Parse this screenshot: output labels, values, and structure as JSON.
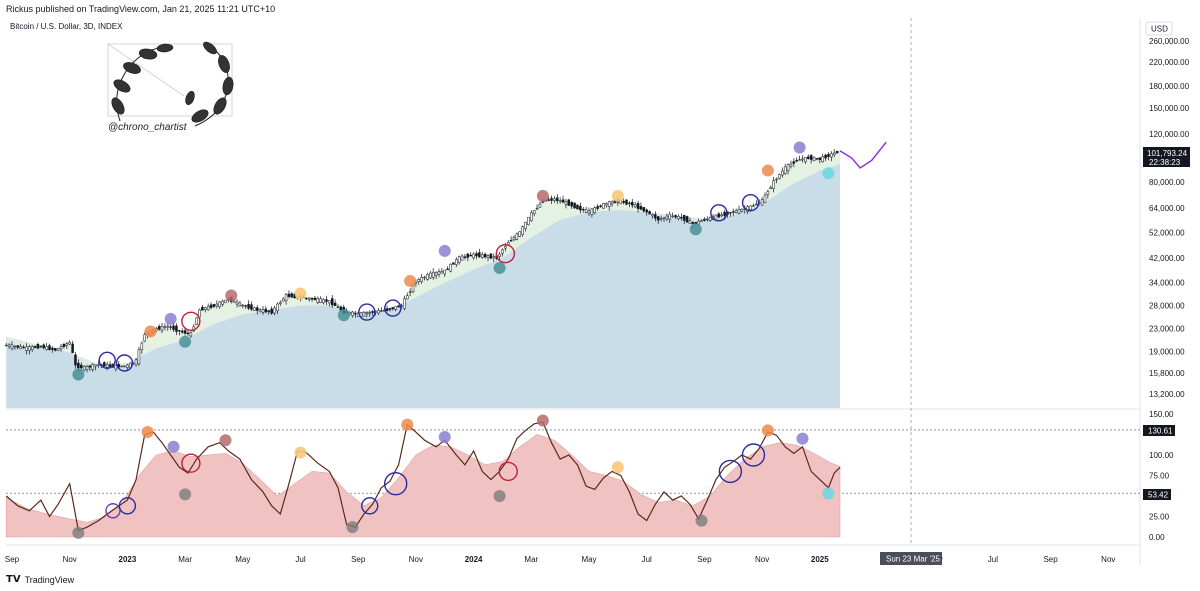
{
  "header": {
    "published_text": "Rickus published on TradingView.com, Jan 21, 2025 11:21 UTC+10"
  },
  "chart_title": "Bitcoin / U.S. Dollar, 3D, INDEX",
  "watermark_handle": "@chrono_chartist",
  "footer": {
    "brand": "TradingView"
  },
  "currency_label": "USD",
  "price_badge": {
    "price": "101,793.24",
    "countdown": "22:38:23"
  },
  "osc_badges": [
    "130.61",
    "53.42"
  ],
  "crosshair_date": "Sun 23 Mar '25",
  "colors": {
    "cloud_fill": "#c9dde8",
    "band_fill": "#dfeede",
    "osc_fill": "#f0c2c2",
    "osc_line": "#5a2a1a",
    "candle": "#131722",
    "projection": "#8a2be2",
    "marker_cyan": "#6fd6e0"
  },
  "chart_data": [
    {
      "type": "candlestick",
      "title": "Bitcoin / U.S. Dollar, 3D, INDEX",
      "y_scale": "log",
      "y_ticks": [
        13200,
        15800,
        19000,
        23000,
        28000,
        34000,
        42000,
        52000,
        64000,
        80000,
        120000,
        150000,
        180000,
        220000,
        260000
      ],
      "y_tick_labels": [
        "13,200.00",
        "15,800.00",
        "19,000.00",
        "23,000.00",
        "28,000.00",
        "34,000.00",
        "42,000.00",
        "52,000.00",
        "64,000.00",
        "80,000.00",
        "120,000.00",
        "150,000.00",
        "180,000.00",
        "220,000.00",
        "260,000.00"
      ],
      "x_ticks": [
        "Sep",
        "Nov",
        "2023",
        "Mar",
        "May",
        "Jul",
        "Sep",
        "Nov",
        "2024",
        "Mar",
        "May",
        "Jul",
        "Sep",
        "Nov",
        "2025",
        "May",
        "Jul",
        "Sep",
        "Nov"
      ],
      "x_tick_months": [
        0,
        2,
        4,
        6,
        8,
        10,
        12,
        14,
        16,
        18,
        20,
        22,
        24,
        26,
        28,
        32,
        34,
        36,
        38
      ],
      "price_path": [
        [
          -0.2,
          20000
        ],
        [
          0.5,
          19500
        ],
        [
          1.0,
          19800
        ],
        [
          1.5,
          19200
        ],
        [
          2.0,
          20500
        ],
        [
          2.2,
          16800
        ],
        [
          2.5,
          16500
        ],
        [
          3.0,
          17000
        ],
        [
          3.5,
          16700
        ],
        [
          4.0,
          16800
        ],
        [
          4.3,
          17500
        ],
        [
          4.6,
          22000
        ],
        [
          5.0,
          23000
        ],
        [
          5.4,
          23500
        ],
        [
          5.8,
          22500
        ],
        [
          6.2,
          22000
        ],
        [
          6.5,
          27000
        ],
        [
          7.0,
          28000
        ],
        [
          7.5,
          29500
        ],
        [
          8.0,
          28000
        ],
        [
          8.5,
          27000
        ],
        [
          9.0,
          26500
        ],
        [
          9.5,
          30500
        ],
        [
          10.0,
          30000
        ],
        [
          10.5,
          29500
        ],
        [
          11.0,
          29000
        ],
        [
          11.5,
          26500
        ],
        [
          12.0,
          26000
        ],
        [
          12.5,
          26500
        ],
        [
          13.0,
          27000
        ],
        [
          13.5,
          28000
        ],
        [
          14.0,
          34500
        ],
        [
          14.5,
          36500
        ],
        [
          15.0,
          37500
        ],
        [
          15.5,
          42000
        ],
        [
          16.0,
          43000
        ],
        [
          16.5,
          42500
        ],
        [
          16.8,
          42000
        ],
        [
          17.2,
          48000
        ],
        [
          17.6,
          52000
        ],
        [
          18.0,
          61000
        ],
        [
          18.4,
          68000
        ],
        [
          18.8,
          69000
        ],
        [
          19.2,
          67000
        ],
        [
          19.6,
          64000
        ],
        [
          20.0,
          62000
        ],
        [
          20.5,
          66000
        ],
        [
          21.0,
          68000
        ],
        [
          21.5,
          66000
        ],
        [
          22.0,
          62000
        ],
        [
          22.4,
          58000
        ],
        [
          22.8,
          60000
        ],
        [
          23.2,
          59000
        ],
        [
          23.6,
          56000
        ],
        [
          24.0,
          58000
        ],
        [
          24.5,
          60000
        ],
        [
          25.0,
          62000
        ],
        [
          25.5,
          64000
        ],
        [
          26.0,
          68000
        ],
        [
          26.4,
          80000
        ],
        [
          26.8,
          90000
        ],
        [
          27.2,
          96000
        ],
        [
          27.6,
          98000
        ],
        [
          28.0,
          97000
        ],
        [
          28.3,
          100000
        ],
        [
          28.7,
          104000
        ]
      ],
      "projection_path": [
        [
          28.7,
          104000
        ],
        [
          29.1,
          98000
        ],
        [
          29.4,
          90000
        ],
        [
          29.8,
          96000
        ],
        [
          30.3,
          112000
        ]
      ],
      "cloud_lower": [
        [
          -0.2,
          21500
        ],
        [
          1.0,
          20000
        ],
        [
          2.0,
          18800
        ],
        [
          3.0,
          17000
        ],
        [
          4.0,
          17200
        ],
        [
          5.0,
          19500
        ],
        [
          6.0,
          21000
        ],
        [
          7.0,
          24000
        ],
        [
          8.0,
          26000
        ],
        [
          9.0,
          27000
        ],
        [
          10.0,
          28000
        ],
        [
          11.0,
          28000
        ],
        [
          12.0,
          26500
        ],
        [
          13.0,
          27000
        ],
        [
          14.0,
          30000
        ],
        [
          15.0,
          34000
        ],
        [
          16.0,
          38000
        ],
        [
          17.0,
          42000
        ],
        [
          18.0,
          50000
        ],
        [
          19.0,
          58000
        ],
        [
          20.0,
          62000
        ],
        [
          21.0,
          63000
        ],
        [
          22.0,
          62000
        ],
        [
          23.0,
          60000
        ],
        [
          24.0,
          58500
        ],
        [
          25.0,
          60000
        ],
        [
          26.0,
          66000
        ],
        [
          27.0,
          78000
        ],
        [
          28.0,
          88000
        ],
        [
          28.7,
          93000
        ]
      ],
      "markers": [
        {
          "t": 2.3,
          "v": 15600,
          "style": "teal"
        },
        {
          "t": 3.3,
          "v": 17600,
          "style": "ring-blue"
        },
        {
          "t": 3.9,
          "v": 17200,
          "style": "ring-blue"
        },
        {
          "t": 4.8,
          "v": 22500,
          "style": "orange"
        },
        {
          "t": 5.5,
          "v": 25000,
          "style": "purple"
        },
        {
          "t": 6.0,
          "v": 20600,
          "style": "teal"
        },
        {
          "t": 6.2,
          "v": 24500,
          "style": "ring-red"
        },
        {
          "t": 7.6,
          "v": 30500,
          "style": "brown"
        },
        {
          "t": 10.0,
          "v": 31000,
          "style": "yellow"
        },
        {
          "t": 11.5,
          "v": 25800,
          "style": "teal"
        },
        {
          "t": 12.3,
          "v": 26500,
          "style": "ring-blue"
        },
        {
          "t": 13.2,
          "v": 27400,
          "style": "ring-blue"
        },
        {
          "t": 13.8,
          "v": 34500,
          "style": "orange"
        },
        {
          "t": 15.0,
          "v": 44500,
          "style": "purple"
        },
        {
          "t": 16.9,
          "v": 38500,
          "style": "teal"
        },
        {
          "t": 17.1,
          "v": 43500,
          "style": "ring-red"
        },
        {
          "t": 18.4,
          "v": 71000,
          "style": "brown"
        },
        {
          "t": 21.0,
          "v": 71000,
          "style": "yellow"
        },
        {
          "t": 23.7,
          "v": 53500,
          "style": "teal"
        },
        {
          "t": 24.5,
          "v": 61500,
          "style": "ring-blue"
        },
        {
          "t": 25.6,
          "v": 67000,
          "style": "ring-blue"
        },
        {
          "t": 26.2,
          "v": 88000,
          "style": "orange"
        },
        {
          "t": 27.3,
          "v": 107000,
          "style": "purple"
        },
        {
          "t": 28.3,
          "v": 86000,
          "style": "cyan"
        }
      ]
    },
    {
      "type": "oscillator",
      "y_ticks": [
        0,
        25,
        50,
        75,
        100,
        150
      ],
      "y_tick_labels": [
        "0.00",
        "25.00",
        "50.00",
        "75.00",
        "100.00",
        "150.00"
      ],
      "levels": [
        130.61,
        53.42
      ],
      "line": [
        [
          -0.2,
          50
        ],
        [
          0.2,
          38
        ],
        [
          0.6,
          32
        ],
        [
          1.0,
          45
        ],
        [
          1.3,
          25
        ],
        [
          1.6,
          40
        ],
        [
          2.0,
          65
        ],
        [
          2.3,
          8
        ],
        [
          2.6,
          12
        ],
        [
          3.0,
          20
        ],
        [
          3.3,
          28
        ],
        [
          3.7,
          38
        ],
        [
          4.0,
          45
        ],
        [
          4.3,
          70
        ],
        [
          4.6,
          125
        ],
        [
          4.9,
          128
        ],
        [
          5.2,
          115
        ],
        [
          5.5,
          100
        ],
        [
          5.8,
          85
        ],
        [
          6.1,
          78
        ],
        [
          6.4,
          95
        ],
        [
          6.8,
          110
        ],
        [
          7.2,
          115
        ],
        [
          7.5,
          105
        ],
        [
          7.9,
          95
        ],
        [
          8.3,
          70
        ],
        [
          8.7,
          55
        ],
        [
          9.0,
          38
        ],
        [
          9.3,
          28
        ],
        [
          9.6,
          65
        ],
        [
          9.9,
          105
        ],
        [
          10.2,
          103
        ],
        [
          10.6,
          90
        ],
        [
          11.0,
          80
        ],
        [
          11.3,
          60
        ],
        [
          11.6,
          15
        ],
        [
          11.9,
          12
        ],
        [
          12.2,
          28
        ],
        [
          12.5,
          40
        ],
        [
          12.8,
          60
        ],
        [
          13.1,
          68
        ],
        [
          13.4,
          88
        ],
        [
          13.7,
          137
        ],
        [
          14.0,
          128
        ],
        [
          14.3,
          118
        ],
        [
          14.7,
          110
        ],
        [
          15.0,
          118
        ],
        [
          15.4,
          100
        ],
        [
          15.7,
          88
        ],
        [
          16.0,
          105
        ],
        [
          16.3,
          80
        ],
        [
          16.6,
          70
        ],
        [
          16.9,
          80
        ],
        [
          17.2,
          95
        ],
        [
          17.5,
          120
        ],
        [
          17.8,
          130
        ],
        [
          18.1,
          138
        ],
        [
          18.4,
          140
        ],
        [
          18.7,
          115
        ],
        [
          19.0,
          95
        ],
        [
          19.3,
          100
        ],
        [
          19.6,
          88
        ],
        [
          19.9,
          62
        ],
        [
          20.2,
          58
        ],
        [
          20.5,
          72
        ],
        [
          20.8,
          80
        ],
        [
          21.1,
          75
        ],
        [
          21.4,
          55
        ],
        [
          21.7,
          28
        ],
        [
          22.0,
          20
        ],
        [
          22.3,
          40
        ],
        [
          22.6,
          55
        ],
        [
          22.9,
          45
        ],
        [
          23.2,
          50
        ],
        [
          23.5,
          40
        ],
        [
          23.8,
          22
        ],
        [
          24.1,
          45
        ],
        [
          24.4,
          70
        ],
        [
          24.7,
          85
        ],
        [
          25.0,
          92
        ],
        [
          25.3,
          100
        ],
        [
          25.6,
          95
        ],
        [
          25.9,
          108
        ],
        [
          26.2,
          128
        ],
        [
          26.5,
          124
        ],
        [
          26.8,
          110
        ],
        [
          27.1,
          102
        ],
        [
          27.4,
          110
        ],
        [
          27.7,
          80
        ],
        [
          28.0,
          70
        ],
        [
          28.3,
          60
        ],
        [
          28.5,
          78
        ],
        [
          28.7,
          85
        ]
      ],
      "area": [
        [
          -0.2,
          48
        ],
        [
          0.5,
          35
        ],
        [
          1.2,
          28
        ],
        [
          2.0,
          22
        ],
        [
          2.6,
          18
        ],
        [
          3.2,
          24
        ],
        [
          3.8,
          40
        ],
        [
          4.4,
          75
        ],
        [
          5.0,
          100
        ],
        [
          5.6,
          105
        ],
        [
          6.2,
          98
        ],
        [
          6.8,
          100
        ],
        [
          7.4,
          102
        ],
        [
          8.0,
          90
        ],
        [
          8.6,
          70
        ],
        [
          9.2,
          50
        ],
        [
          9.8,
          65
        ],
        [
          10.4,
          80
        ],
        [
          11.0,
          78
        ],
        [
          11.6,
          55
        ],
        [
          12.2,
          38
        ],
        [
          12.8,
          48
        ],
        [
          13.4,
          72
        ],
        [
          14.0,
          100
        ],
        [
          14.6,
          112
        ],
        [
          15.2,
          110
        ],
        [
          15.8,
          100
        ],
        [
          16.4,
          88
        ],
        [
          17.0,
          92
        ],
        [
          17.6,
          110
        ],
        [
          18.2,
          125
        ],
        [
          18.8,
          118
        ],
        [
          19.4,
          100
        ],
        [
          20.0,
          80
        ],
        [
          20.6,
          75
        ],
        [
          21.2,
          68
        ],
        [
          21.8,
          52
        ],
        [
          22.4,
          42
        ],
        [
          23.0,
          45
        ],
        [
          23.6,
          38
        ],
        [
          24.2,
          50
        ],
        [
          24.8,
          75
        ],
        [
          25.4,
          95
        ],
        [
          26.0,
          110
        ],
        [
          26.6,
          115
        ],
        [
          27.2,
          112
        ],
        [
          27.8,
          102
        ],
        [
          28.4,
          90
        ],
        [
          28.7,
          86
        ]
      ],
      "markers": [
        {
          "t": 2.3,
          "v": 5,
          "style": "grey"
        },
        {
          "t": 3.5,
          "v": 32,
          "style": "ring-purple"
        },
        {
          "t": 4.0,
          "v": 38,
          "style": "ring-blue"
        },
        {
          "t": 4.7,
          "v": 128,
          "style": "orange"
        },
        {
          "t": 5.6,
          "v": 110,
          "style": "purple"
        },
        {
          "t": 6.0,
          "v": 52,
          "style": "grey"
        },
        {
          "t": 6.2,
          "v": 90,
          "style": "ring-red"
        },
        {
          "t": 7.4,
          "v": 118,
          "style": "brown"
        },
        {
          "t": 10.0,
          "v": 103,
          "style": "yellow"
        },
        {
          "t": 11.8,
          "v": 12,
          "style": "grey"
        },
        {
          "t": 12.4,
          "v": 38,
          "style": "ring-blue"
        },
        {
          "t": 13.3,
          "v": 65,
          "style": "ring-blue-big"
        },
        {
          "t": 13.7,
          "v": 137,
          "style": "orange"
        },
        {
          "t": 15.0,
          "v": 122,
          "style": "purple"
        },
        {
          "t": 16.9,
          "v": 50,
          "style": "grey"
        },
        {
          "t": 17.2,
          "v": 80,
          "style": "ring-red"
        },
        {
          "t": 18.4,
          "v": 142,
          "style": "brown"
        },
        {
          "t": 21.0,
          "v": 85,
          "style": "yellow"
        },
        {
          "t": 23.9,
          "v": 20,
          "style": "grey"
        },
        {
          "t": 24.9,
          "v": 80,
          "style": "ring-blue-big"
        },
        {
          "t": 25.7,
          "v": 100,
          "style": "ring-blue-big"
        },
        {
          "t": 26.2,
          "v": 130,
          "style": "orange"
        },
        {
          "t": 27.4,
          "v": 120,
          "style": "purple"
        },
        {
          "t": 28.3,
          "v": 53,
          "style": "cyan"
        }
      ]
    }
  ]
}
